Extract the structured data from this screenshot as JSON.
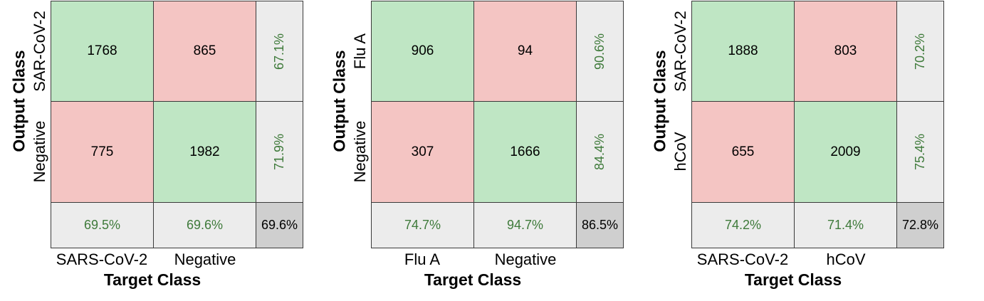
{
  "chart_data": [
    {
      "type": "heatmap",
      "xlabel": "Target Class",
      "ylabel": "Output Class",
      "x_tick_labels": [
        "SARS-CoV-2",
        "Negative"
      ],
      "y_tick_labels": [
        "SAR-CoV-2",
        "Negative"
      ],
      "matrix": [
        [
          "1768",
          "865"
        ],
        [
          "775",
          "1982"
        ]
      ],
      "row_summary": [
        "67.1%",
        "71.9%"
      ],
      "col_summary": [
        "69.5%",
        "69.6%"
      ],
      "overall": "69.6%"
    },
    {
      "type": "heatmap",
      "xlabel": "Target Class",
      "ylabel": "Output Class",
      "x_tick_labels": [
        "Flu A",
        "Negative"
      ],
      "y_tick_labels": [
        "Flu A",
        "Negative"
      ],
      "matrix": [
        [
          "906",
          "94"
        ],
        [
          "307",
          "1666"
        ]
      ],
      "row_summary": [
        "90.6%",
        "84.4%"
      ],
      "col_summary": [
        "74.7%",
        "94.7%"
      ],
      "overall": "86.5%"
    },
    {
      "type": "heatmap",
      "xlabel": "Target Class",
      "ylabel": "Output Class",
      "x_tick_labels": [
        "SARS-CoV-2",
        "hCoV"
      ],
      "y_tick_labels": [
        "SAR-CoV-2",
        "hCoV"
      ],
      "matrix": [
        [
          "1888",
          "803"
        ],
        [
          "655",
          "2009"
        ]
      ],
      "row_summary": [
        "70.2%",
        "75.4%"
      ],
      "col_summary": [
        "74.2%",
        "71.4%"
      ],
      "overall": "72.8%"
    }
  ],
  "colors": {
    "correct_cell": "#bfe6c4",
    "incorrect_cell": "#f4c5c3",
    "summary_cell": "#ececec",
    "overall_cell": "#cfcfcf",
    "summary_text": "#3e7a3a"
  }
}
